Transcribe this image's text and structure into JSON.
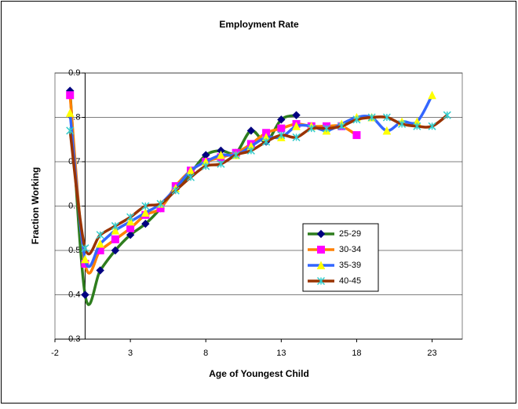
{
  "chart_data": {
    "type": "line",
    "title": "Employment Rate",
    "x_label": "Age of Youngest Child",
    "y_label": "Fraction Working",
    "x": [
      -1,
      0,
      1,
      2,
      3,
      4,
      5,
      6,
      7,
      8,
      9,
      10,
      11,
      12,
      13,
      14,
      15,
      16,
      17,
      18,
      19,
      20,
      21,
      22,
      23,
      24
    ],
    "series": [
      {
        "name": "25-29",
        "color": "#2e7d1e",
        "marker_color": "#000080",
        "marker": "diamond",
        "values": [
          0.86,
          0.4,
          0.455,
          0.5,
          0.535,
          0.56,
          0.595,
          0.64,
          0.675,
          0.715,
          0.725,
          0.72,
          0.77,
          0.745,
          0.795,
          0.805,
          null,
          null,
          null,
          null,
          null,
          null,
          null,
          null,
          null,
          null
        ]
      },
      {
        "name": "30-34",
        "color": "#ff8000",
        "marker_color": "#ff00ff",
        "marker": "square",
        "values": [
          0.85,
          0.47,
          0.5,
          0.525,
          0.55,
          0.58,
          0.595,
          0.645,
          0.68,
          0.7,
          0.71,
          0.72,
          0.74,
          0.765,
          0.775,
          0.785,
          0.78,
          0.78,
          0.78,
          0.76,
          null,
          null,
          null,
          null,
          null,
          null
        ]
      },
      {
        "name": "35-39",
        "color": "#3366ff",
        "marker_color": "#ffff00",
        "marker": "triangle",
        "values": [
          0.81,
          0.48,
          0.515,
          0.545,
          0.565,
          0.585,
          0.605,
          0.64,
          0.68,
          0.7,
          0.715,
          0.715,
          0.735,
          0.755,
          0.755,
          0.78,
          0.78,
          0.77,
          0.785,
          0.8,
          0.8,
          0.77,
          0.79,
          0.79,
          0.85,
          null
        ]
      },
      {
        "name": "40-45",
        "color": "#993300",
        "marker_color": "#33cccc",
        "marker": "star",
        "values": [
          0.77,
          0.505,
          0.535,
          0.555,
          0.575,
          0.6,
          0.605,
          0.635,
          0.665,
          0.69,
          0.695,
          0.715,
          0.725,
          0.745,
          0.76,
          0.755,
          0.775,
          0.775,
          0.78,
          0.795,
          0.8,
          0.8,
          0.785,
          0.78,
          0.78,
          0.805
        ]
      }
    ],
    "xlim": [
      -2,
      25
    ],
    "xticks": [
      -2,
      3,
      8,
      13,
      18,
      23
    ],
    "ylim": [
      0.3,
      0.9
    ],
    "yticks": [
      0.3,
      0.4,
      0.5,
      0.6,
      0.7,
      0.8,
      0.9
    ],
    "grid": true,
    "legend": "right"
  }
}
